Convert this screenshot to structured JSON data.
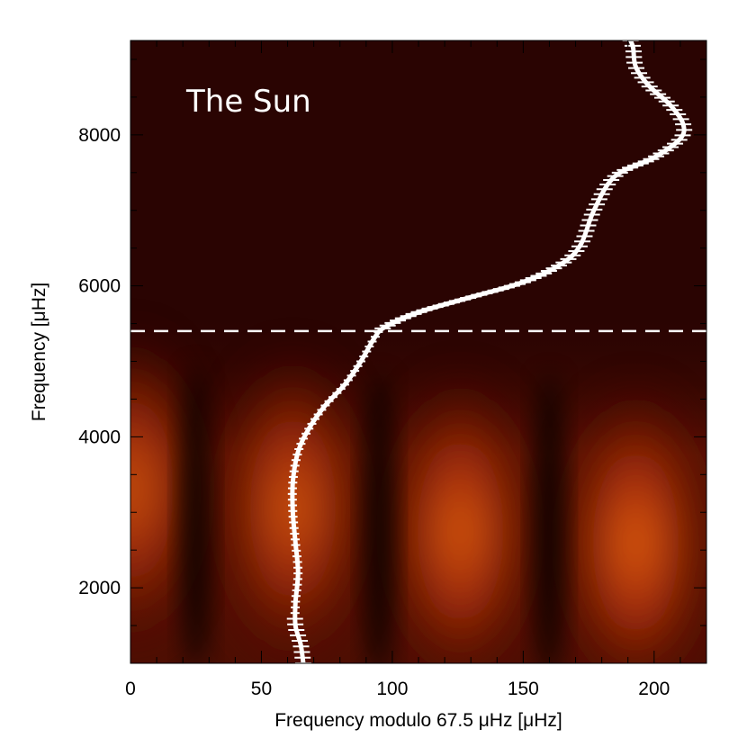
{
  "chart_data": {
    "type": "heatmap",
    "title": "",
    "annotation": "The Sun",
    "xlabel": "Frequency modulo 67.5 μHz [μHz]",
    "ylabel": "Frequency [μHz]",
    "xlim": [
      0,
      220
    ],
    "ylim": [
      1000,
      9250
    ],
    "x_ticks": [
      "0",
      "50",
      "100",
      "150",
      "200"
    ],
    "y_ticks": [
      "2000",
      "4000",
      "6000",
      "8000"
    ],
    "colormap": [
      "#000000",
      "#3a0500",
      "#7a1c05",
      "#c43c0a",
      "#ff7a10"
    ],
    "background_color": "#2a0402",
    "dashed_line_y": 5400,
    "heat_blobs": [
      {
        "x": 0,
        "y": 3300,
        "intensity": 0.8
      },
      {
        "x": 62,
        "y": 3050,
        "intensity": 0.82
      },
      {
        "x": 126,
        "y": 2750,
        "intensity": 0.88
      },
      {
        "x": 193,
        "y": 2600,
        "intensity": 0.92
      }
    ],
    "dark_ridges": [
      {
        "x": 25,
        "y": 1600
      },
      {
        "x": 95,
        "y": 1500
      },
      {
        "x": 160,
        "y": 1500
      }
    ],
    "ridge_series": {
      "name": "",
      "points": [
        [
          66,
          1000
        ],
        [
          65,
          1250
        ],
        [
          63,
          1500
        ],
        [
          63,
          1800
        ],
        [
          64,
          2200
        ],
        [
          63,
          2600
        ],
        [
          62,
          3000
        ],
        [
          62,
          3400
        ],
        [
          64,
          3800
        ],
        [
          68,
          4100
        ],
        [
          74,
          4400
        ],
        [
          82,
          4700
        ],
        [
          88,
          5000
        ],
        [
          93,
          5300
        ],
        [
          97,
          5450
        ],
        [
          110,
          5650
        ],
        [
          130,
          5850
        ],
        [
          150,
          6050
        ],
        [
          165,
          6300
        ],
        [
          172,
          6550
        ],
        [
          177,
          7000
        ],
        [
          185,
          7450
        ],
        [
          200,
          7700
        ],
        [
          210,
          7950
        ],
        [
          211,
          8150
        ],
        [
          206,
          8400
        ],
        [
          198,
          8650
        ],
        [
          193,
          8900
        ],
        [
          192,
          9150
        ],
        [
          191,
          9250
        ]
      ]
    }
  }
}
